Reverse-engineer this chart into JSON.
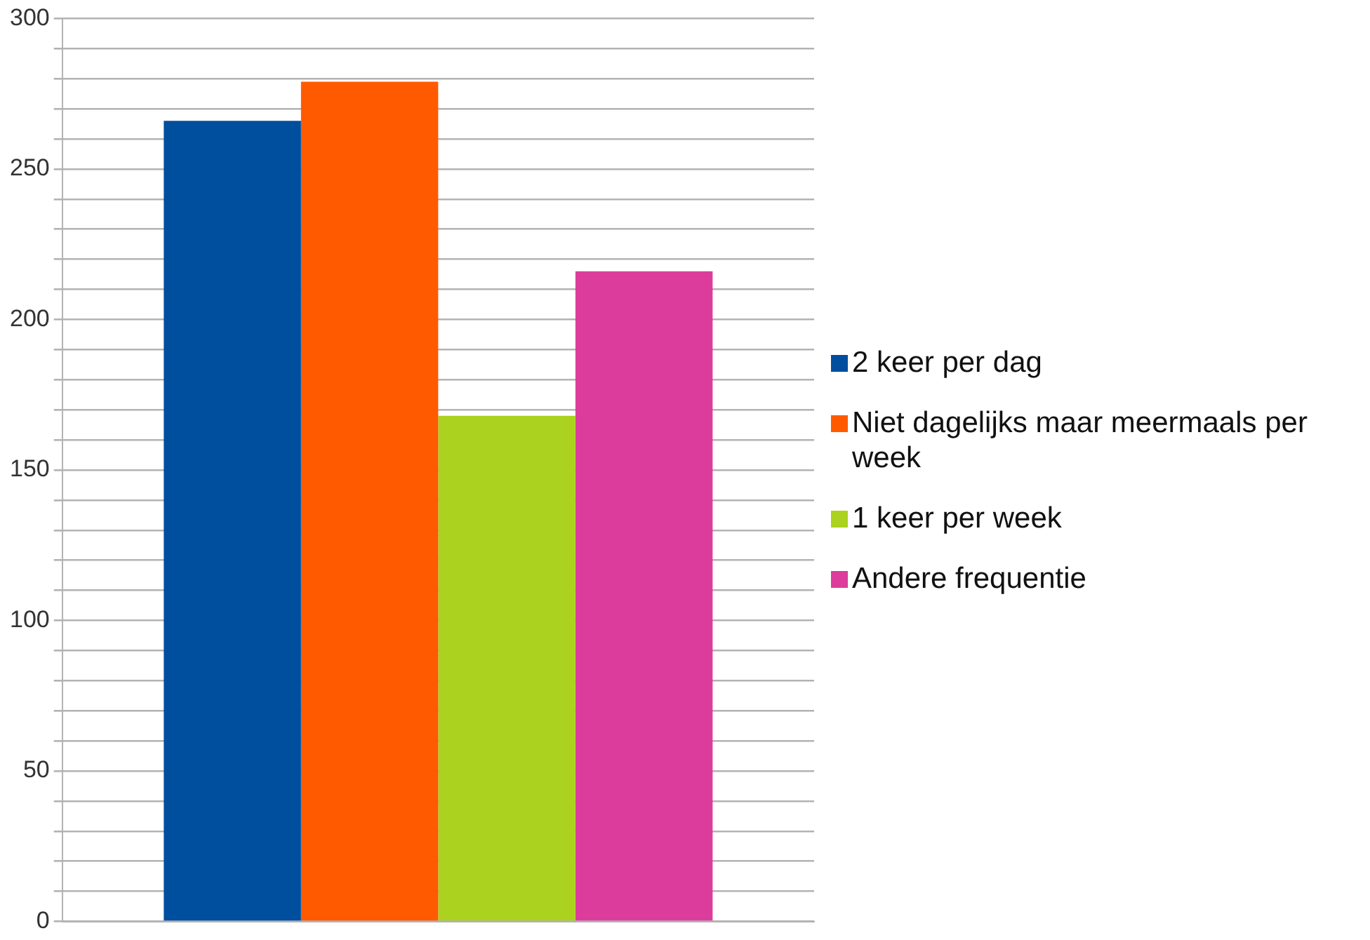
{
  "chart_data": {
    "type": "bar",
    "categories": [
      null
    ],
    "series": [
      {
        "name": "2 keer per dag",
        "color": "#004e9e",
        "values": [
          266
        ]
      },
      {
        "name": "Niet dagelijks maar meermaals per week",
        "color": "#ff5a00",
        "values": [
          279
        ]
      },
      {
        "name": "1 keer per week",
        "color": "#aad21e",
        "values": [
          168
        ]
      },
      {
        "name": "Andere frequentie",
        "color": "#dc3c9b",
        "values": [
          216
        ]
      }
    ],
    "ylim": [
      0,
      300
    ],
    "yticks": [
      0,
      {
        "value": 10,
        "label": null
      },
      {
        "value": 20,
        "label": null
      },
      {
        "value": 30,
        "label": null
      },
      {
        "value": 40,
        "label": null
      },
      50,
      {
        "value": 60,
        "label": null
      },
      {
        "value": 70,
        "label": null
      },
      {
        "value": 80,
        "label": null
      },
      {
        "value": 90,
        "label": null
      },
      100,
      {
        "value": 110,
        "label": null
      },
      {
        "value": 120,
        "label": null
      },
      {
        "value": 130,
        "label": null
      },
      {
        "value": 140,
        "label": null
      },
      150,
      {
        "value": 160,
        "label": null
      },
      {
        "value": 170,
        "label": null
      },
      {
        "value": 180,
        "label": null
      },
      {
        "value": 190,
        "label": null
      },
      200,
      {
        "value": 210,
        "label": null
      },
      {
        "value": 220,
        "label": null
      },
      {
        "value": 230,
        "label": null
      },
      {
        "value": 240,
        "label": null
      },
      250,
      {
        "value": 260,
        "label": null
      },
      {
        "value": 270,
        "label": null
      },
      {
        "value": 280,
        "label": null
      },
      {
        "value": 290,
        "label": null
      },
      300
    ],
    "grid": "y",
    "legend": "right",
    "tick_labels": "y"
  }
}
